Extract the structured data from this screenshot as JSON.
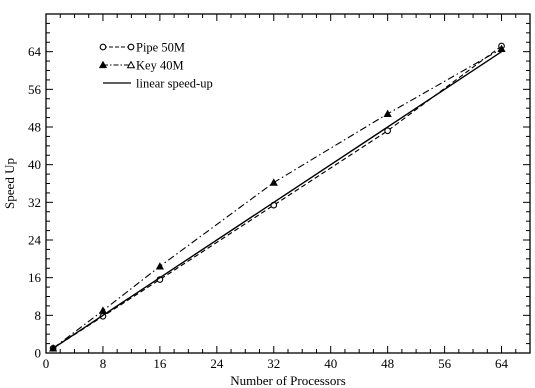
{
  "chart_data": {
    "type": "line",
    "title": "",
    "xlabel": "Number of Processors",
    "ylabel": "Speed Up",
    "xlim": [
      0,
      68
    ],
    "ylim": [
      0,
      72
    ],
    "xticks": [
      0,
      8,
      16,
      24,
      32,
      40,
      48,
      56,
      64
    ],
    "yticks": [
      0,
      8,
      16,
      24,
      32,
      40,
      48,
      56,
      64
    ],
    "grid": false,
    "legend_position": "top-left",
    "series": [
      {
        "name": "Pipe 50M",
        "marker": "open-circle",
        "line_style": "dashed",
        "color": "#000000",
        "x": [
          1,
          8,
          16,
          32,
          48,
          64
        ],
        "y": [
          1,
          7.8,
          15.6,
          31.4,
          47.2,
          65.2
        ]
      },
      {
        "name": "Key 40M",
        "marker": "triangle",
        "line_style": "dash-dot",
        "color": "#000000",
        "x": [
          1,
          8,
          16,
          32,
          48,
          64
        ],
        "y": [
          1,
          9.0,
          18.4,
          36.2,
          50.8,
          64.6
        ]
      },
      {
        "name": "linear speed-up",
        "marker": "none",
        "line_style": "solid",
        "color": "#000000",
        "x": [
          1,
          64
        ],
        "y": [
          1,
          64
        ]
      }
    ]
  }
}
